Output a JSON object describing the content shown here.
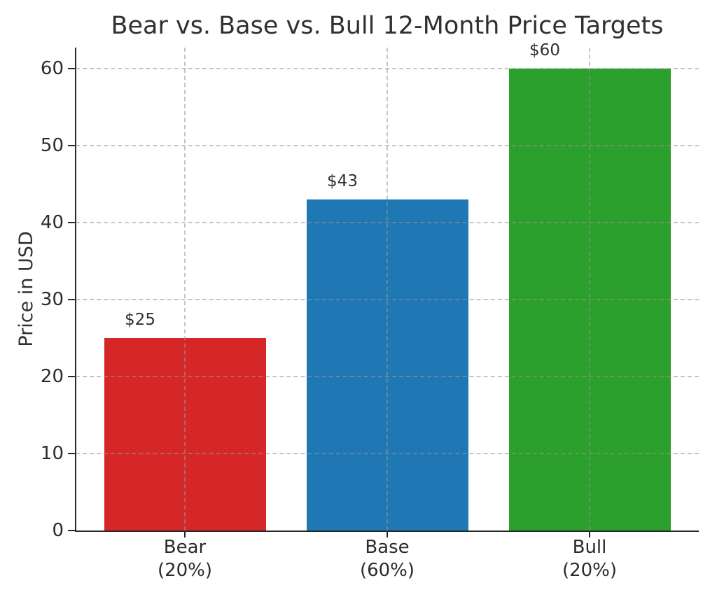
{
  "chart_data": {
    "type": "bar",
    "title": "Bear vs. Base vs. Bull 12-Month Price Targets",
    "xlabel": "",
    "ylabel": "Price in USD",
    "categories": [
      {
        "name": "Bear",
        "weight": "(20%)"
      },
      {
        "name": "Base",
        "weight": "(60%)"
      },
      {
        "name": "Bull",
        "weight": "(20%)"
      }
    ],
    "values": [
      25,
      43,
      60
    ],
    "value_labels": [
      "$25",
      "$43",
      "$60"
    ],
    "bar_colors": [
      "#d62728",
      "#1f77b4",
      "#2ca02c"
    ],
    "yticks": [
      0,
      10,
      20,
      30,
      40,
      50,
      60
    ],
    "ylim": [
      0,
      62.7
    ],
    "grid": "dashed horizontal and vertical, drawn over bars",
    "legend": "none"
  },
  "style": {
    "text_color": "#303030",
    "tick_text_color": "#2b2b2b",
    "spine_color": "#282828",
    "grid_color": "rgba(150,150,150,0.55)",
    "background": "#ffffff"
  }
}
